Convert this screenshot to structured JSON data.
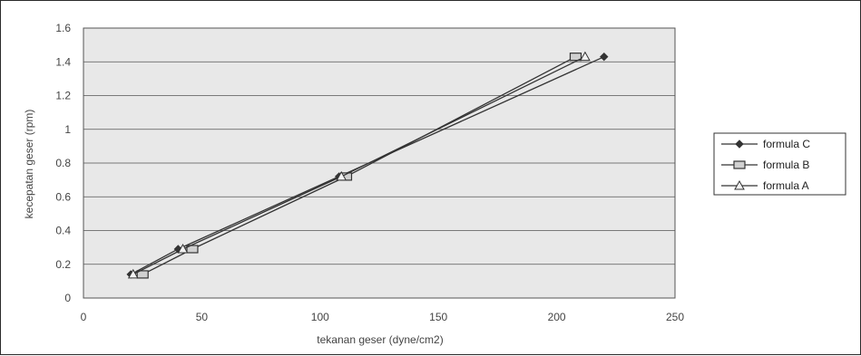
{
  "chart_data": {
    "type": "line",
    "xlabel": "tekanan geser (dyne/cm2)",
    "ylabel": "kecepatan geser (rpm)",
    "xlim": [
      0,
      250
    ],
    "ylim": [
      0,
      1.6
    ],
    "x_ticks": [
      "0",
      "50",
      "100",
      "150",
      "200",
      "250"
    ],
    "y_ticks": [
      "0",
      "0.2",
      "0.4",
      "0.6",
      "0.8",
      "1",
      "1.2",
      "1.4",
      "1.6"
    ],
    "grid": "horizontal",
    "legend_position": "right",
    "series": [
      {
        "name": "formula C",
        "marker": "diamond",
        "points": [
          [
            20,
            0.14
          ],
          [
            40,
            0.29
          ],
          [
            108,
            0.72
          ],
          [
            220,
            1.43
          ]
        ]
      },
      {
        "name": "formula B",
        "marker": "square",
        "points": [
          [
            25,
            0.14
          ],
          [
            46,
            0.29
          ],
          [
            111,
            0.72
          ],
          [
            208,
            1.43
          ]
        ]
      },
      {
        "name": "formula A",
        "marker": "triangle",
        "points": [
          [
            21,
            0.14
          ],
          [
            42,
            0.29
          ],
          [
            109,
            0.72
          ],
          [
            212,
            1.43
          ]
        ]
      }
    ]
  }
}
